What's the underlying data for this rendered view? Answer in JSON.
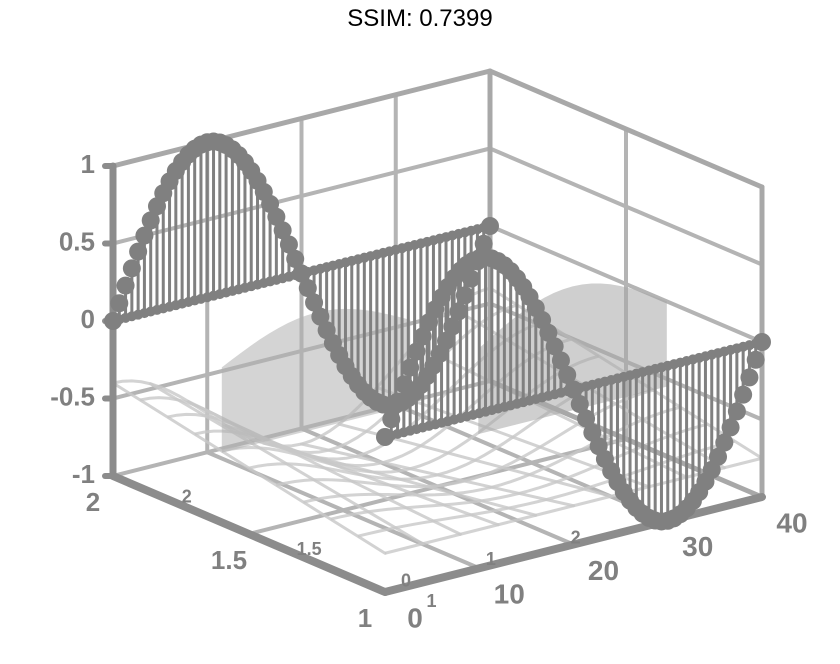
{
  "title": "SSIM: 0.7399",
  "chart_data": {
    "type": "3d-line-stem",
    "title": "SSIM: 0.7399",
    "xlabel": "",
    "ylabel": "",
    "zlabel": "",
    "grid": true,
    "x_ticks": [
      "1",
      "1.5",
      "2"
    ],
    "y_ticks": [
      "0",
      "10",
      "20",
      "30",
      "40"
    ],
    "z_ticks": [
      "-1",
      "-0.5",
      "0",
      "0.5",
      "1"
    ],
    "inner_x_ticks": [
      "1",
      "1.5",
      "2"
    ],
    "inner_y_ticks": [
      "0",
      "1",
      "2"
    ],
    "xlim": [
      1,
      2
    ],
    "ylim": [
      0,
      40
    ],
    "zlim": [
      -1,
      1
    ],
    "series": [
      {
        "x": 1,
        "function": "sin",
        "y_range": [
          0,
          40
        ],
        "samples": 60
      },
      {
        "x": 2,
        "function": "sin",
        "y_range": [
          0,
          40
        ],
        "samples": 60
      }
    ],
    "colors": {
      "series": "#808080",
      "grid": "#b4b4b4",
      "axes": "#8c8c8c"
    }
  }
}
